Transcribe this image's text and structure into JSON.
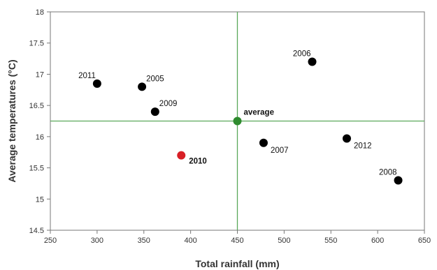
{
  "chart_data": {
    "type": "scatter",
    "title": "",
    "xlabel": "Total rainfall (mm)",
    "ylabel": "Average temperatures (°C)",
    "xlim": [
      250,
      650
    ],
    "ylim": [
      14.5,
      18
    ],
    "xticks": [
      "250",
      "300",
      "350",
      "400",
      "450",
      "500",
      "550",
      "600",
      "650"
    ],
    "yticks": [
      "14.5",
      "15",
      "15.5",
      "16",
      "16.5",
      "17",
      "17.5",
      "18"
    ],
    "grid": false,
    "points": [
      {
        "label": "2011",
        "x": 300,
        "y": 16.85,
        "color": "#000000",
        "label_pos": "upper-left"
      },
      {
        "label": "2005",
        "x": 348,
        "y": 16.8,
        "color": "#000000",
        "label_pos": "upper-right"
      },
      {
        "label": "2009",
        "x": 362,
        "y": 16.4,
        "color": "#000000",
        "label_pos": "upper-right"
      },
      {
        "label": "2010",
        "x": 390,
        "y": 15.7,
        "color": "#d81f26",
        "label_pos": "lower-right"
      },
      {
        "label": "average",
        "x": 450,
        "y": 16.25,
        "color": "#2e8b2e",
        "label_pos": "upper-right"
      },
      {
        "label": "2007",
        "x": 478,
        "y": 15.9,
        "color": "#000000",
        "label_pos": "lower-right"
      },
      {
        "label": "2006",
        "x": 530,
        "y": 17.2,
        "color": "#000000",
        "label_pos": "upper-left"
      },
      {
        "label": "2012",
        "x": 567,
        "y": 15.97,
        "color": "#000000",
        "label_pos": "lower-right"
      },
      {
        "label": "2008",
        "x": 622,
        "y": 15.3,
        "color": "#000000",
        "label_pos": "upper-left"
      }
    ],
    "reference_lines": {
      "x": 450,
      "y": 16.25,
      "color": "#5aa85a"
    },
    "colors": {
      "axis": "#777777",
      "text": "#333333"
    }
  }
}
